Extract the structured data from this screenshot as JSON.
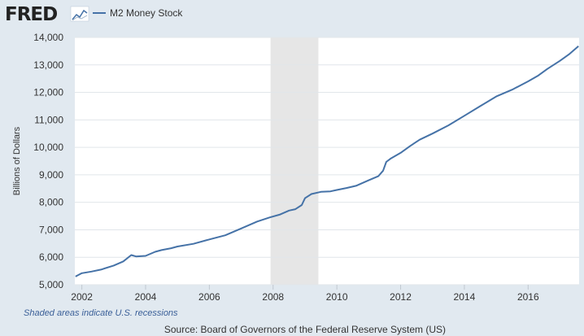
{
  "header": {
    "logo_text": "FRED",
    "legend_label": "M2 Money Stock"
  },
  "colors": {
    "background": "#e1e9f0",
    "plot_background": "#ffffff",
    "series_line": "#4572a7",
    "recession_shade": "#e6e6e6",
    "grid": "#e1e6ea",
    "note_text": "#3a5f98"
  },
  "footer": {
    "recession_note": "Shaded areas indicate U.S. recessions",
    "source": "Source: Board of Governors of the Federal Reserve System (US)"
  },
  "chart_data": {
    "type": "line",
    "title": "",
    "xlabel": "",
    "ylabel": "Billions of Dollars",
    "xlim": [
      2001.78,
      2017.6
    ],
    "ylim": [
      5000,
      14000
    ],
    "x_ticks": [
      2002,
      2004,
      2006,
      2008,
      2010,
      2012,
      2014,
      2016
    ],
    "y_ticks": [
      5000,
      6000,
      7000,
      8000,
      9000,
      10000,
      11000,
      12000,
      13000,
      14000
    ],
    "y_tick_labels": [
      "5,000",
      "6,000",
      "7,000",
      "8,000",
      "9,000",
      "10,000",
      "11,000",
      "12,000",
      "13,000",
      "14,000"
    ],
    "grid": "horizontal",
    "legend": "top-left",
    "recessions": [
      {
        "start": 2007.92,
        "end": 2009.42
      }
    ],
    "series": [
      {
        "name": "M2 Money Stock",
        "x": [
          2001.8,
          2002.0,
          2002.3,
          2002.6,
          2003.0,
          2003.3,
          2003.55,
          2003.7,
          2004.0,
          2004.3,
          2004.5,
          2004.8,
          2005.0,
          2005.5,
          2006.0,
          2006.5,
          2007.0,
          2007.5,
          2007.9,
          2008.2,
          2008.5,
          2008.7,
          2008.9,
          2009.0,
          2009.2,
          2009.5,
          2009.8,
          2010.0,
          2010.3,
          2010.6,
          2011.0,
          2011.3,
          2011.45,
          2011.55,
          2011.7,
          2012.0,
          2012.3,
          2012.6,
          2013.0,
          2013.5,
          2014.0,
          2014.5,
          2015.0,
          2015.5,
          2016.0,
          2016.3,
          2016.6,
          2017.0,
          2017.3,
          2017.58
        ],
        "y": [
          5300,
          5420,
          5480,
          5550,
          5700,
          5850,
          6080,
          6030,
          6050,
          6200,
          6260,
          6330,
          6390,
          6490,
          6650,
          6800,
          7050,
          7300,
          7450,
          7550,
          7700,
          7750,
          7900,
          8150,
          8300,
          8380,
          8400,
          8450,
          8520,
          8600,
          8800,
          8950,
          9150,
          9470,
          9600,
          9800,
          10050,
          10280,
          10500,
          10800,
          11150,
          11500,
          11850,
          12100,
          12400,
          12600,
          12850,
          13150,
          13400,
          13680
        ]
      }
    ]
  }
}
